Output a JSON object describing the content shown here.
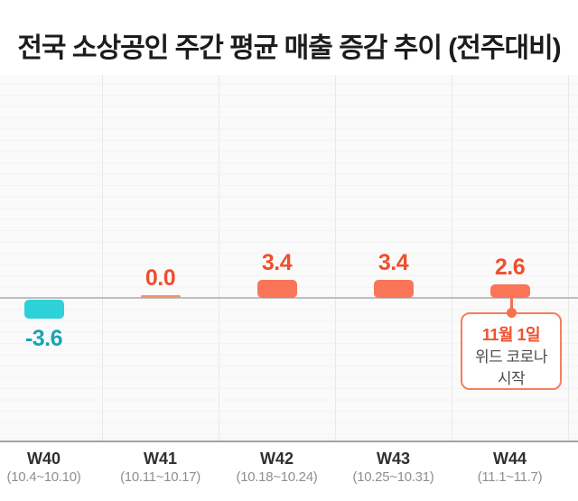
{
  "title": "전국 소상공인 주간 평균 매출 증감 추이 (전주대비)",
  "chart_data": {
    "type": "bar",
    "title": "전국 소상공인 주간 평균 매출 증감 추이 (전주대비)",
    "categories": [
      "W40",
      "W41",
      "W42",
      "W43",
      "W44"
    ],
    "category_dates": [
      "(10.4~10.10)",
      "(10.11~10.17)",
      "(10.18~10.24)",
      "(10.25~10.31)",
      "(11.1~11.7)"
    ],
    "values": [
      -3.6,
      0.0,
      3.4,
      3.4,
      2.6
    ],
    "value_labels": [
      "-3.6",
      "0.0",
      "3.4",
      "3.4",
      "2.6"
    ],
    "xlabel": "",
    "ylabel": "",
    "y_tick_labels_visible": false,
    "grid": true,
    "legend": false,
    "annotation": {
      "target_category": "W44",
      "line1": "11월 1일",
      "line2": "위드 코로나",
      "line3": "시작"
    }
  },
  "colors": {
    "bar_positive": "#fa7557",
    "bar_zero": "#f89070",
    "bar_negative": "#2ed1d8",
    "label_positive": "#f14e2c",
    "label_negative": "#17a3b5",
    "annotation_border": "#f87d5d",
    "annotation_accent": "#f1502e",
    "annotation_text": "#4a4a4a",
    "title_text": "#1c1c1c",
    "week_label": "#2f2f2f",
    "date_label": "#8f8f8f"
  }
}
